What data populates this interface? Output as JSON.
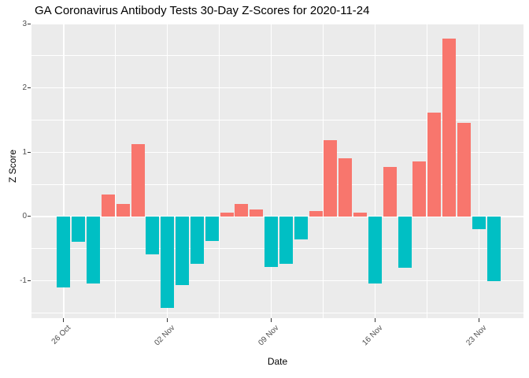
{
  "chart_data": {
    "type": "bar",
    "title": "GA Coronavirus Antibody Tests 30-Day Z-Scores for 2020-11-24",
    "xlabel": "Date",
    "ylabel": "Z Score",
    "categories": [
      "26 Oct",
      "27 Oct",
      "28 Oct",
      "29 Oct",
      "30 Oct",
      "31 Oct",
      "01 Nov",
      "02 Nov",
      "03 Nov",
      "04 Nov",
      "05 Nov",
      "06 Nov",
      "07 Nov",
      "08 Nov",
      "09 Nov",
      "10 Nov",
      "11 Nov",
      "12 Nov",
      "13 Nov",
      "14 Nov",
      "15 Nov",
      "16 Nov",
      "17 Nov",
      "18 Nov",
      "19 Nov",
      "20 Nov",
      "21 Nov",
      "22 Nov",
      "23 Nov",
      "24 Nov"
    ],
    "values": [
      -1.1,
      -0.39,
      -1.04,
      0.34,
      0.2,
      1.13,
      -0.59,
      -1.42,
      -1.06,
      -0.73,
      -0.38,
      0.06,
      0.19,
      0.11,
      -0.78,
      -0.73,
      -0.35,
      0.08,
      1.19,
      0.9,
      0.06,
      -1.04,
      0.77,
      -0.8,
      0.86,
      1.62,
      2.77,
      1.46,
      -0.2,
      -1.0
    ],
    "ylim": [
      -1.58,
      3.0
    ],
    "y_major_ticks": [
      -1,
      0,
      1,
      2,
      3
    ],
    "y_minor_ticks": [
      -1.5,
      -0.5,
      0.5,
      1.5,
      2.5
    ],
    "x_tick_labels": [
      "26 Oct",
      "02 Nov",
      "09 Nov",
      "16 Nov",
      "23 Nov"
    ],
    "x_tick_indices": [
      0,
      7,
      14,
      21,
      28
    ],
    "x_minor_indices": [
      3.5,
      10.5,
      17.5,
      24.5
    ],
    "grid": true,
    "legend": "none",
    "colors": {
      "positive_bar": "#F8766D",
      "negative_bar": "#00BFC4",
      "panel_background": "#EBEBEB",
      "gridline": "#FFFFFF",
      "axis_text": "#4D4D4D",
      "tick_mark": "#333333",
      "title_text": "#000000"
    }
  }
}
